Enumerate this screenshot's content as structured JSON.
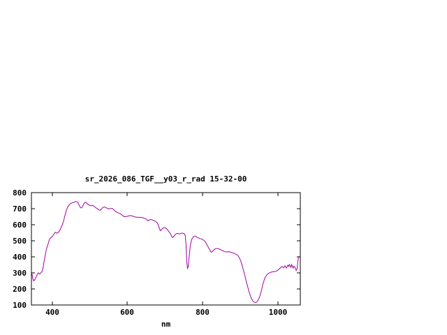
{
  "chart_data": {
    "type": "line",
    "title": "sr_2026_086_TGF__y03_r_rad 15-32-00",
    "xlabel": "nm",
    "ylabel": "",
    "xlim": [
      345,
      1060
    ],
    "ylim": [
      100,
      800
    ],
    "x_ticks": [
      400,
      600,
      800,
      1000
    ],
    "y_ticks": [
      100,
      200,
      300,
      400,
      500,
      600,
      700,
      800
    ],
    "grid": false,
    "legend": "none",
    "background_color": "#ffffff",
    "axis_color": "#000000",
    "line_color": "#a000a0",
    "series": [
      {
        "name": "sr_2026_086_TGF__y03_r_rad",
        "points": [
          [
            345,
            315
          ],
          [
            347,
            285
          ],
          [
            349,
            262
          ],
          [
            351,
            250
          ],
          [
            353,
            255
          ],
          [
            355,
            262
          ],
          [
            357,
            272
          ],
          [
            359,
            282
          ],
          [
            361,
            292
          ],
          [
            363,
            300
          ],
          [
            365,
            298
          ],
          [
            367,
            293
          ],
          [
            369,
            298
          ],
          [
            371,
            303
          ],
          [
            373,
            308
          ],
          [
            375,
            322
          ],
          [
            377,
            345
          ],
          [
            379,
            378
          ],
          [
            381,
            402
          ],
          [
            383,
            428
          ],
          [
            385,
            448
          ],
          [
            387,
            462
          ],
          [
            389,
            478
          ],
          [
            391,
            495
          ],
          [
            393,
            508
          ],
          [
            395,
            516
          ],
          [
            397,
            520
          ],
          [
            399,
            523
          ],
          [
            401,
            528
          ],
          [
            403,
            535
          ],
          [
            405,
            542
          ],
          [
            407,
            550
          ],
          [
            409,
            553
          ],
          [
            411,
            549
          ],
          [
            413,
            547
          ],
          [
            415,
            551
          ],
          [
            417,
            554
          ],
          [
            419,
            560
          ],
          [
            421,
            568
          ],
          [
            423,
            578
          ],
          [
            425,
            590
          ],
          [
            427,
            600
          ],
          [
            429,
            612
          ],
          [
            431,
            628
          ],
          [
            433,
            648
          ],
          [
            435,
            666
          ],
          [
            437,
            682
          ],
          [
            439,
            696
          ],
          [
            441,
            708
          ],
          [
            443,
            716
          ],
          [
            445,
            722
          ],
          [
            447,
            727
          ],
          [
            449,
            731
          ],
          [
            451,
            734
          ],
          [
            453,
            736
          ],
          [
            455,
            737
          ],
          [
            457,
            739
          ],
          [
            459,
            741
          ],
          [
            461,
            743
          ],
          [
            463,
            745
          ],
          [
            465,
            744
          ],
          [
            467,
            741
          ],
          [
            469,
            736
          ],
          [
            471,
            726
          ],
          [
            473,
            716
          ],
          [
            475,
            708
          ],
          [
            477,
            705
          ],
          [
            479,
            707
          ],
          [
            481,
            714
          ],
          [
            483,
            724
          ],
          [
            485,
            732
          ],
          [
            487,
            738
          ],
          [
            489,
            740
          ],
          [
            491,
            737
          ],
          [
            493,
            732
          ],
          [
            495,
            727
          ],
          [
            497,
            724
          ],
          [
            499,
            722
          ],
          [
            501,
            720
          ],
          [
            503,
            718
          ],
          [
            505,
            719
          ],
          [
            507,
            721
          ],
          [
            509,
            719
          ],
          [
            511,
            716
          ],
          [
            513,
            712
          ],
          [
            515,
            708
          ],
          [
            517,
            705
          ],
          [
            519,
            702
          ],
          [
            521,
            699
          ],
          [
            523,
            695
          ],
          [
            525,
            692
          ],
          [
            527,
            690
          ],
          [
            529,
            693
          ],
          [
            531,
            698
          ],
          [
            533,
            703
          ],
          [
            535,
            707
          ],
          [
            537,
            710
          ],
          [
            539,
            711
          ],
          [
            541,
            709
          ],
          [
            543,
            707
          ],
          [
            545,
            704
          ],
          [
            547,
            702
          ],
          [
            549,
            700
          ],
          [
            551,
            699
          ],
          [
            553,
            700
          ],
          [
            555,
            701
          ],
          [
            557,
            701
          ],
          [
            559,
            702
          ],
          [
            561,
            699
          ],
          [
            563,
            695
          ],
          [
            565,
            690
          ],
          [
            567,
            686
          ],
          [
            569,
            682
          ],
          [
            571,
            679
          ],
          [
            573,
            677
          ],
          [
            575,
            675
          ],
          [
            577,
            673
          ],
          [
            579,
            671
          ],
          [
            581,
            669
          ],
          [
            583,
            666
          ],
          [
            585,
            662
          ],
          [
            587,
            658
          ],
          [
            589,
            654
          ],
          [
            591,
            651
          ],
          [
            593,
            650
          ],
          [
            595,
            650
          ],
          [
            597,
            651
          ],
          [
            599,
            652
          ],
          [
            602,
            654
          ],
          [
            605,
            656
          ],
          [
            608,
            657
          ],
          [
            611,
            656
          ],
          [
            614,
            654
          ],
          [
            617,
            651
          ],
          [
            620,
            649
          ],
          [
            623,
            648
          ],
          [
            626,
            647
          ],
          [
            629,
            646
          ],
          [
            632,
            646
          ],
          [
            635,
            646
          ],
          [
            638,
            645
          ],
          [
            641,
            644
          ],
          [
            644,
            641
          ],
          [
            647,
            638
          ],
          [
            650,
            636
          ],
          [
            653,
            628
          ],
          [
            656,
            624
          ],
          [
            659,
            630
          ],
          [
            662,
            633
          ],
          [
            665,
            631
          ],
          [
            668,
            629
          ],
          [
            671,
            626
          ],
          [
            674,
            622
          ],
          [
            677,
            617
          ],
          [
            680,
            610
          ],
          [
            682,
            600
          ],
          [
            684,
            588
          ],
          [
            686,
            572
          ],
          [
            688,
            563
          ],
          [
            690,
            567
          ],
          [
            692,
            573
          ],
          [
            694,
            578
          ],
          [
            696,
            581
          ],
          [
            698,
            582
          ],
          [
            700,
            581
          ],
          [
            702,
            579
          ],
          [
            704,
            576
          ],
          [
            706,
            571
          ],
          [
            708,
            565
          ],
          [
            710,
            559
          ],
          [
            712,
            552
          ],
          [
            714,
            546
          ],
          [
            716,
            538
          ],
          [
            718,
            528
          ],
          [
            720,
            521
          ],
          [
            722,
            523
          ],
          [
            724,
            529
          ],
          [
            726,
            535
          ],
          [
            728,
            540
          ],
          [
            730,
            543
          ],
          [
            732,
            545
          ],
          [
            734,
            546
          ],
          [
            736,
            544
          ],
          [
            738,
            542
          ],
          [
            740,
            544
          ],
          [
            742,
            546
          ],
          [
            744,
            548
          ],
          [
            746,
            548
          ],
          [
            748,
            547
          ],
          [
            750,
            545
          ],
          [
            752,
            541
          ],
          [
            754,
            534
          ],
          [
            756,
            480
          ],
          [
            758,
            370
          ],
          [
            760,
            328
          ],
          [
            762,
            338
          ],
          [
            764,
            390
          ],
          [
            766,
            440
          ],
          [
            768,
            478
          ],
          [
            770,
            498
          ],
          [
            772,
            512
          ],
          [
            774,
            520
          ],
          [
            776,
            526
          ],
          [
            778,
            529
          ],
          [
            780,
            529
          ],
          [
            782,
            527
          ],
          [
            784,
            524
          ],
          [
            786,
            521
          ],
          [
            788,
            519
          ],
          [
            790,
            517
          ],
          [
            793,
            514
          ],
          [
            796,
            512
          ],
          [
            799,
            510
          ],
          [
            802,
            505
          ],
          [
            805,
            499
          ],
          [
            808,
            491
          ],
          [
            811,
            480
          ],
          [
            814,
            466
          ],
          [
            817,
            452
          ],
          [
            820,
            440
          ],
          [
            822,
            432
          ],
          [
            824,
            429
          ],
          [
            826,
            432
          ],
          [
            828,
            438
          ],
          [
            830,
            443
          ],
          [
            832,
            447
          ],
          [
            834,
            450
          ],
          [
            836,
            451
          ],
          [
            838,
            452
          ],
          [
            840,
            452
          ],
          [
            843,
            450
          ],
          [
            846,
            447
          ],
          [
            849,
            443
          ],
          [
            852,
            440
          ],
          [
            855,
            437
          ],
          [
            858,
            434
          ],
          [
            861,
            431
          ],
          [
            864,
            430
          ],
          [
            867,
            431
          ],
          [
            870,
            432
          ],
          [
            873,
            430
          ],
          [
            876,
            428
          ],
          [
            879,
            426
          ],
          [
            882,
            423
          ],
          [
            885,
            421
          ],
          [
            888,
            418
          ],
          [
            891,
            414
          ],
          [
            894,
            408
          ],
          [
            897,
            398
          ],
          [
            900,
            384
          ],
          [
            903,
            364
          ],
          [
            906,
            340
          ],
          [
            909,
            314
          ],
          [
            912,
            288
          ],
          [
            915,
            260
          ],
          [
            918,
            232
          ],
          [
            921,
            205
          ],
          [
            924,
            180
          ],
          [
            927,
            158
          ],
          [
            930,
            140
          ],
          [
            933,
            128
          ],
          [
            936,
            120
          ],
          [
            939,
            116
          ],
          [
            941,
            115
          ],
          [
            943,
            117
          ],
          [
            945,
            121
          ],
          [
            947,
            127
          ],
          [
            949,
            136
          ],
          [
            951,
            147
          ],
          [
            953,
            160
          ],
          [
            955,
            176
          ],
          [
            957,
            194
          ],
          [
            959,
            214
          ],
          [
            961,
            233
          ],
          [
            963,
            250
          ],
          [
            965,
            263
          ],
          [
            967,
            273
          ],
          [
            969,
            281
          ],
          [
            971,
            287
          ],
          [
            973,
            292
          ],
          [
            975,
            296
          ],
          [
            977,
            299
          ],
          [
            979,
            301
          ],
          [
            981,
            303
          ],
          [
            983,
            305
          ],
          [
            985,
            306
          ],
          [
            987,
            307
          ],
          [
            989,
            308
          ],
          [
            991,
            308
          ],
          [
            993,
            309
          ],
          [
            995,
            310
          ],
          [
            997,
            312
          ],
          [
            999,
            315
          ],
          [
            1001,
            319
          ],
          [
            1003,
            323
          ],
          [
            1005,
            328
          ],
          [
            1007,
            332
          ],
          [
            1009,
            336
          ],
          [
            1011,
            340
          ],
          [
            1013,
            338
          ],
          [
            1015,
            332
          ],
          [
            1017,
            336
          ],
          [
            1019,
            344
          ],
          [
            1021,
            338
          ],
          [
            1023,
            330
          ],
          [
            1025,
            340
          ],
          [
            1027,
            348
          ],
          [
            1029,
            340
          ],
          [
            1031,
            352
          ],
          [
            1033,
            344
          ],
          [
            1035,
            334
          ],
          [
            1037,
            352
          ],
          [
            1039,
            340
          ],
          [
            1041,
            330
          ],
          [
            1043,
            342
          ],
          [
            1045,
            336
          ],
          [
            1047,
            328
          ],
          [
            1049,
            315
          ],
          [
            1051,
            322
          ],
          [
            1053,
            360
          ],
          [
            1055,
            398
          ]
        ]
      }
    ]
  }
}
